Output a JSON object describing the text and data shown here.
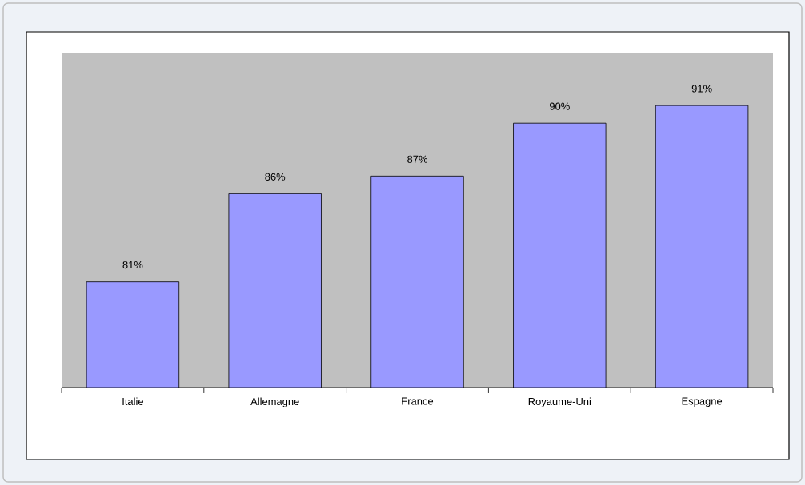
{
  "chart_data": {
    "type": "bar",
    "categories": [
      "Italie",
      "Allemagne",
      "France",
      "Royaume-Uni",
      "Espagne"
    ],
    "values": [
      81,
      86,
      87,
      90,
      91
    ],
    "value_labels": [
      "81%",
      "86%",
      "87%",
      "90%",
      "91%"
    ],
    "color": "#9999ff",
    "ylim": [
      75,
      94
    ]
  }
}
